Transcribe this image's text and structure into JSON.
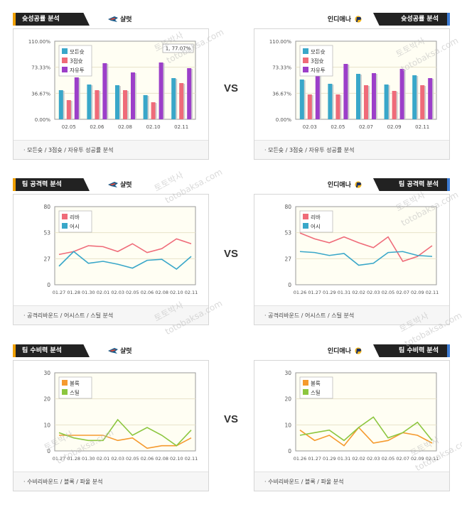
{
  "sections": [
    {
      "vs_label": "VS",
      "left": {
        "tab_label": "슛성공률 분석",
        "team_name": "샬럿",
        "team_logo": "hornets-logo",
        "caption": "· 모든슛 / 3점슛 / 자유투 성공률 분석",
        "chart_data": {
          "type": "bar",
          "categories": [
            "02.05",
            "02.06",
            "02.08",
            "02.10",
            "02.11"
          ],
          "yticks": [
            "0.00%",
            "36.67%",
            "73.33%",
            "110.00%"
          ],
          "ylim": [
            0,
            110
          ],
          "series": [
            {
              "name": "모든슛",
              "color": "#39a7c9",
              "values": [
                41,
                49,
                48,
                34,
                58
              ]
            },
            {
              "name": "3점슛",
              "color": "#ef6b79",
              "values": [
                27,
                41,
                41,
                24,
                51
              ]
            },
            {
              "name": "자유투",
              "color": "#9c3fc9",
              "values": [
                59,
                79,
                66,
                80,
                72
              ]
            }
          ],
          "annotation": "1, 77.07%"
        }
      },
      "right": {
        "tab_label": "슛성공률 분석",
        "team_name": "인디애나",
        "team_logo": "pacers-logo",
        "caption": "· 모든슛 / 3점슛 / 자유투 성공률 분석",
        "chart_data": {
          "type": "bar",
          "categories": [
            "02.03",
            "02.05",
            "02.07",
            "02.09",
            "02.11"
          ],
          "yticks": [
            "0.00%",
            "36.67%",
            "73.33%",
            "110.00%"
          ],
          "ylim": [
            0,
            110
          ],
          "series": [
            {
              "name": "모든슛",
              "color": "#39a7c9",
              "values": [
                56,
                50,
                64,
                49,
                62
              ]
            },
            {
              "name": "3점슛",
              "color": "#ef6b79",
              "values": [
                35,
                35,
                48,
                40,
                48
              ]
            },
            {
              "name": "자유투",
              "color": "#9c3fc9",
              "values": [
                80,
                78,
                65,
                71,
                58
              ]
            }
          ]
        }
      }
    },
    {
      "vs_label": "VS",
      "left": {
        "tab_label": "팀 공격력 분석",
        "team_name": "샬럿",
        "team_logo": "hornets-logo",
        "caption": "· 공격리바운드 / 어시스트 / 스틸 분석",
        "chart_data": {
          "type": "line",
          "categories": [
            "01.27",
            "01.28",
            "01.30",
            "02.01",
            "02.03",
            "02.05",
            "02.06",
            "02.08",
            "02.10",
            "02.11"
          ],
          "yticks": [
            "0",
            "27",
            "53",
            "80"
          ],
          "ylim": [
            0,
            80
          ],
          "series": [
            {
              "name": "리바",
              "color": "#ef6b79",
              "values": [
                31,
                34,
                40,
                39,
                34,
                42,
                33,
                37,
                47,
                42
              ]
            },
            {
              "name": "어시",
              "color": "#39a7c9",
              "values": [
                19,
                34,
                22,
                24,
                21,
                17,
                25,
                26,
                16,
                29
              ]
            }
          ]
        }
      },
      "right": {
        "tab_label": "팀 공격력 분석",
        "team_name": "인디애나",
        "team_logo": "pacers-logo",
        "caption": "· 공격리바운드 / 어시스트 / 스틸 분석",
        "chart_data": {
          "type": "line",
          "categories": [
            "01.26",
            "01.27",
            "01.29",
            "01.31",
            "02.02",
            "02.03",
            "02.05",
            "02.07",
            "02.09",
            "02.11"
          ],
          "yticks": [
            "0",
            "27",
            "53",
            "80"
          ],
          "ylim": [
            0,
            80
          ],
          "series": [
            {
              "name": "리바",
              "color": "#ef6b79",
              "values": [
                53,
                47,
                43,
                49,
                43,
                38,
                49,
                24,
                29,
                40
              ]
            },
            {
              "name": "어시",
              "color": "#39a7c9",
              "values": [
                34,
                33,
                30,
                32,
                20,
                22,
                33,
                34,
                30,
                29
              ]
            }
          ]
        }
      }
    },
    {
      "vs_label": "VS",
      "left": {
        "tab_label": "팀 수비력 분석",
        "team_name": "샬럿",
        "team_logo": "hornets-logo",
        "caption": "· 수비리바운드 / 블록 / 파울 분석",
        "chart_data": {
          "type": "line",
          "categories": [
            "01.27",
            "01.28",
            "01.30",
            "02.01",
            "02.03",
            "02.05",
            "02.06",
            "02.08",
            "02.10",
            "02.11"
          ],
          "yticks": [
            "0",
            "10",
            "20",
            "30"
          ],
          "ylim": [
            0,
            30
          ],
          "series": [
            {
              "name": "블록",
              "color": "#f59a2e",
              "values": [
                6,
                6,
                6,
                6,
                4,
                5,
                1,
                2,
                2,
                5
              ]
            },
            {
              "name": "스틸",
              "color": "#8cc63f",
              "values": [
                7,
                5,
                4,
                4,
                12,
                6,
                9,
                6,
                2,
                8
              ]
            }
          ]
        }
      },
      "right": {
        "tab_label": "팀 수비력 분석",
        "team_name": "인디애나",
        "team_logo": "pacers-logo",
        "caption": "· 수비리바운드 / 블록 / 파울 분석",
        "chart_data": {
          "type": "line",
          "categories": [
            "01.26",
            "01.27",
            "01.29",
            "01.31",
            "02.02",
            "02.03",
            "02.05",
            "02.07",
            "02.09",
            "02.11"
          ],
          "yticks": [
            "0",
            "10",
            "20",
            "30"
          ],
          "ylim": [
            0,
            30
          ],
          "series": [
            {
              "name": "블록",
              "color": "#f59a2e",
              "values": [
                8,
                4,
                6,
                2,
                9,
                3,
                4,
                7,
                6,
                3
              ]
            },
            {
              "name": "스틸",
              "color": "#8cc63f",
              "values": [
                6,
                7,
                8,
                4,
                9,
                13,
                5,
                7,
                11,
                4
              ]
            }
          ]
        }
      }
    }
  ],
  "watermarks": [
    "토토박사",
    "totobaksa.com"
  ]
}
